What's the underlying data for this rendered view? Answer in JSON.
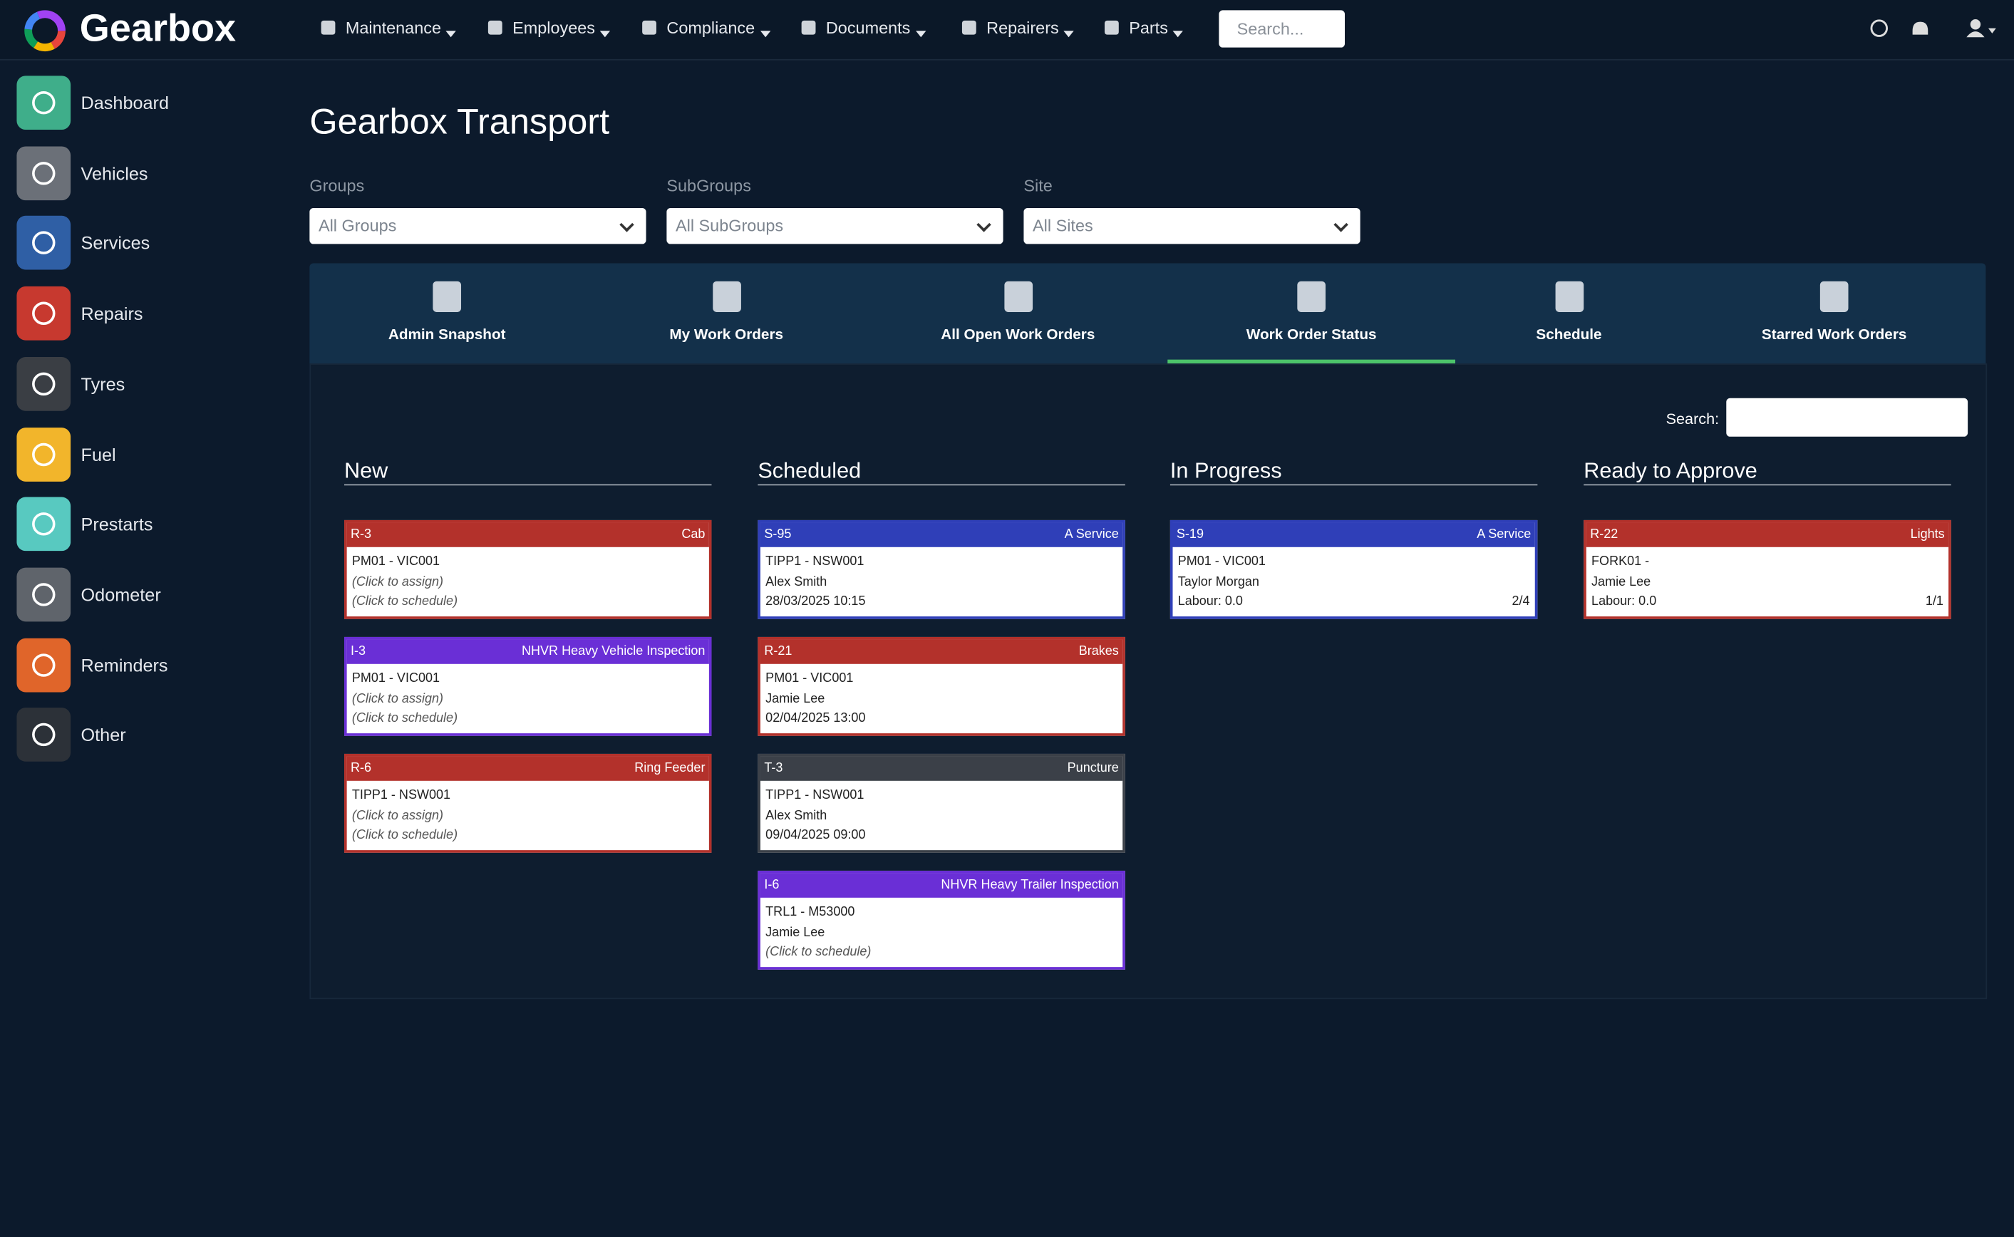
{
  "brand": "Gearbox",
  "nav": [
    "Maintenance",
    "Employees",
    "Compliance",
    "Documents",
    "Repairers",
    "Parts"
  ],
  "search_placeholder": "Search...",
  "sidebar": [
    {
      "label": "Dashboard",
      "color": "#3fae8a"
    },
    {
      "label": "Vehicles",
      "color": "#6b7078"
    },
    {
      "label": "Services",
      "color": "#2f5fa5"
    },
    {
      "label": "Repairs",
      "color": "#c7392f"
    },
    {
      "label": "Tyres",
      "color": "#3a3e44"
    },
    {
      "label": "Fuel",
      "color": "#f2b52b"
    },
    {
      "label": "Prestarts",
      "color": "#58c9c0"
    },
    {
      "label": "Odometer",
      "color": "#5f646b"
    },
    {
      "label": "Reminders",
      "color": "#e0652a"
    },
    {
      "label": "Other",
      "color": "#2c3138"
    }
  ],
  "page_title": "Gearbox Transport",
  "filters": [
    {
      "label": "Groups",
      "value": "All Groups"
    },
    {
      "label": "SubGroups",
      "value": "All SubGroups"
    },
    {
      "label": "Site",
      "value": "All Sites"
    }
  ],
  "tabs": [
    "Admin Snapshot",
    "My Work Orders",
    "All Open Work Orders",
    "Work Order Status",
    "Schedule",
    "Starred Work Orders"
  ],
  "active_tab": 3,
  "search_label": "Search:",
  "columns": [
    {
      "title": "New",
      "cards": [
        {
          "id": "R-3",
          "type": "Cab",
          "color": "#b3312b",
          "lines": [
            {
              "text": "PM01 - VIC001"
            },
            {
              "text": "(Click to assign)",
              "italic": true
            },
            {
              "text": "(Click to schedule)",
              "italic": true
            }
          ]
        },
        {
          "id": "I-3",
          "type": "NHVR Heavy Vehicle Inspection",
          "color": "#6a2fd6",
          "lines": [
            {
              "text": "PM01 - VIC001"
            },
            {
              "text": "(Click to assign)",
              "italic": true
            },
            {
              "text": "(Click to schedule)",
              "italic": true
            }
          ]
        },
        {
          "id": "R-6",
          "type": "Ring Feeder",
          "color": "#b3312b",
          "lines": [
            {
              "text": "TIPP1 - NSW001"
            },
            {
              "text": "(Click to assign)",
              "italic": true
            },
            {
              "text": "(Click to schedule)",
              "italic": true
            }
          ]
        }
      ]
    },
    {
      "title": "Scheduled",
      "cards": [
        {
          "id": "S-95",
          "type": "A Service",
          "color": "#2f3fb8",
          "lines": [
            {
              "text": "TIPP1 - NSW001"
            },
            {
              "text": "Alex Smith"
            },
            {
              "text": "28/03/2025 10:15"
            }
          ]
        },
        {
          "id": "R-21",
          "type": "Brakes",
          "color": "#b3312b",
          "lines": [
            {
              "text": "PM01 - VIC001"
            },
            {
              "text": "Jamie Lee"
            },
            {
              "text": "02/04/2025 13:00"
            }
          ]
        },
        {
          "id": "T-3",
          "type": "Puncture",
          "color": "#3b4048",
          "lines": [
            {
              "text": "TIPP1 - NSW001"
            },
            {
              "text": "Alex Smith"
            },
            {
              "text": "09/04/2025 09:00"
            }
          ]
        },
        {
          "id": "I-6",
          "type": "NHVR Heavy Trailer Inspection",
          "color": "#6a2fd6",
          "lines": [
            {
              "text": "TRL1 - M53000"
            },
            {
              "text": "Jamie Lee"
            },
            {
              "text": "(Click to schedule)",
              "italic": true
            }
          ]
        }
      ]
    },
    {
      "title": "In Progress",
      "cards": [
        {
          "id": "S-19",
          "type": "A Service",
          "color": "#2f3fb8",
          "lines": [
            {
              "text": "PM01 - VIC001"
            },
            {
              "text": "Taylor Morgan"
            },
            {
              "text": "Labour: 0.0"
            }
          ],
          "count": "2/4"
        }
      ]
    },
    {
      "title": "Ready to Approve",
      "cards": [
        {
          "id": "R-22",
          "type": "Lights",
          "color": "#b3312b",
          "lines": [
            {
              "text": "FORK01 -"
            },
            {
              "text": "Jamie Lee"
            },
            {
              "text": "Labour: 0.0"
            }
          ],
          "count": "1/1"
        }
      ]
    }
  ]
}
